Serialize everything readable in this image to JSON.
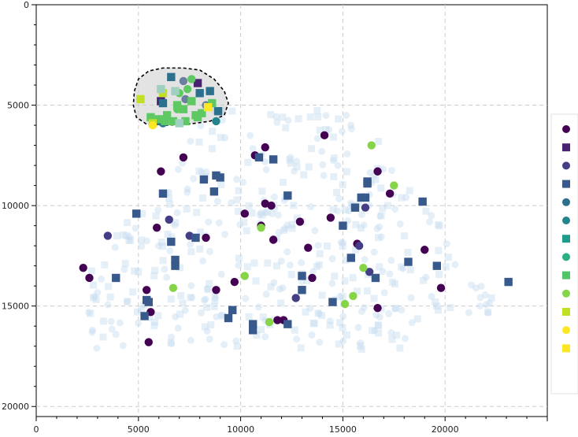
{
  "chart_data": {
    "type": "scatter",
    "title": "",
    "xlabel": "",
    "ylabel": "",
    "xlim": [
      0,
      25000
    ],
    "ylim": [
      20500,
      0
    ],
    "y_inverted": true,
    "grid": true,
    "legend_position": "right",
    "x_ticks": [
      0,
      5000,
      10000,
      15000,
      20000
    ],
    "y_ticks": [
      0,
      5000,
      10000,
      15000,
      20000
    ],
    "x_tick_labels": [
      "0",
      "5000",
      "10000",
      "15000",
      "20000"
    ],
    "y_tick_labels": [
      "0",
      "5000",
      "10000",
      "15000",
      "20000"
    ],
    "background_points_color": "#c6dbef",
    "background_points_opacity": 0.45,
    "background_points_count": 420,
    "lasso_selection": {
      "fill": "#cccccc",
      "stroke": "#000000",
      "outline": [
        [
          4800,
          4300
        ],
        [
          5000,
          3700
        ],
        [
          5500,
          3300
        ],
        [
          6200,
          3150
        ],
        [
          7200,
          3150
        ],
        [
          8000,
          3250
        ],
        [
          8700,
          3700
        ],
        [
          9200,
          4300
        ],
        [
          9400,
          4900
        ],
        [
          9200,
          5500
        ],
        [
          8500,
          5800
        ],
        [
          7400,
          5950
        ],
        [
          6300,
          6000
        ],
        [
          5400,
          5950
        ],
        [
          4900,
          5600
        ],
        [
          4750,
          5000
        ]
      ]
    },
    "legend": [
      {
        "marker": "circle",
        "color": "#440154"
      },
      {
        "marker": "square",
        "color": "#482173"
      },
      {
        "marker": "circle",
        "color": "#433e85"
      },
      {
        "marker": "square",
        "color": "#38598c"
      },
      {
        "marker": "circle",
        "color": "#2d708e"
      },
      {
        "marker": "circle",
        "color": "#25858e"
      },
      {
        "marker": "square",
        "color": "#1e9b8a"
      },
      {
        "marker": "circle",
        "color": "#2ab07f"
      },
      {
        "marker": "square",
        "color": "#52c569"
      },
      {
        "marker": "circle",
        "color": "#86d549"
      },
      {
        "marker": "square",
        "color": "#c2df23"
      },
      {
        "marker": "circle",
        "color": "#fde725"
      },
      {
        "marker": "square",
        "color": "#fde725"
      }
    ],
    "series": [
      {
        "marker": "circle",
        "color": "#440154",
        "points": [
          [
            2300,
            13100
          ],
          [
            2600,
            13600
          ],
          [
            5400,
            14200
          ],
          [
            5600,
            15300
          ],
          [
            5500,
            16800
          ],
          [
            5900,
            11100
          ],
          [
            6100,
            8300
          ],
          [
            7200,
            7600
          ],
          [
            8300,
            11600
          ],
          [
            8800,
            14200
          ],
          [
            9700,
            13800
          ],
          [
            10200,
            10400
          ],
          [
            11000,
            11000
          ],
          [
            11200,
            9900
          ],
          [
            11500,
            10000
          ],
          [
            11600,
            11700
          ],
          [
            11800,
            15700
          ],
          [
            12100,
            15700
          ],
          [
            12900,
            10800
          ],
          [
            13300,
            12100
          ],
          [
            13500,
            13600
          ],
          [
            14100,
            6500
          ],
          [
            14400,
            10600
          ],
          [
            15700,
            11900
          ],
          [
            16700,
            15100
          ],
          [
            16700,
            8300
          ],
          [
            17300,
            9400
          ],
          [
            19800,
            14100
          ],
          [
            19000,
            12200
          ],
          [
            11200,
            7100
          ],
          [
            10700,
            7500
          ]
        ]
      },
      {
        "marker": "circle",
        "color": "#433e85",
        "points": [
          [
            3500,
            11500
          ],
          [
            6500,
            10700
          ],
          [
            7500,
            11500
          ],
          [
            12700,
            14600
          ],
          [
            15800,
            12000
          ],
          [
            16100,
            10100
          ],
          [
            16300,
            13300
          ]
        ]
      },
      {
        "marker": "square",
        "color": "#38598c",
        "points": [
          [
            3900,
            13600
          ],
          [
            4900,
            10400
          ],
          [
            5400,
            14700
          ],
          [
            5500,
            14800
          ],
          [
            5300,
            15500
          ],
          [
            6200,
            9400
          ],
          [
            6600,
            11800
          ],
          [
            6800,
            12700
          ],
          [
            6800,
            13000
          ],
          [
            7800,
            11600
          ],
          [
            8200,
            8700
          ],
          [
            8700,
            9300
          ],
          [
            8800,
            8500
          ],
          [
            9000,
            8600
          ],
          [
            9400,
            15600
          ],
          [
            9600,
            15200
          ],
          [
            10600,
            15900
          ],
          [
            10600,
            16200
          ],
          [
            10900,
            7600
          ],
          [
            11600,
            7700
          ],
          [
            12300,
            9500
          ],
          [
            12300,
            15900
          ],
          [
            13000,
            13500
          ],
          [
            13000,
            14200
          ],
          [
            14500,
            14800
          ],
          [
            15000,
            11000
          ],
          [
            15400,
            12600
          ],
          [
            15600,
            10100
          ],
          [
            15900,
            9600
          ],
          [
            16100,
            9600
          ],
          [
            16200,
            8800
          ],
          [
            16600,
            13600
          ],
          [
            18200,
            12800
          ],
          [
            18900,
            9800
          ],
          [
            19600,
            13000
          ],
          [
            23100,
            13800
          ],
          [
            16200,
            8900
          ]
        ]
      },
      {
        "marker": "circle",
        "color": "#86d549",
        "points": [
          [
            6700,
            14100
          ],
          [
            10200,
            13500
          ],
          [
            11000,
            11100
          ],
          [
            11400,
            15800
          ],
          [
            15100,
            14900
          ],
          [
            15500,
            14500
          ],
          [
            16000,
            13100
          ],
          [
            16400,
            7000
          ],
          [
            17500,
            9000
          ]
        ]
      },
      {
        "marker": "circle",
        "color": "#25858e",
        "points": [
          [
            8800,
            5800
          ]
        ]
      },
      {
        "marker": "circle",
        "color": "#2d708e",
        "points": [
          [
            6000,
            5800
          ],
          [
            6200,
            5900
          ]
        ]
      },
      {
        "marker": "square",
        "color": "#482173",
        "points": [
          [
            6100,
            4800
          ],
          [
            7900,
            3900
          ]
        ]
      },
      {
        "marker": "square",
        "color": "#2d708e",
        "points": [
          [
            6200,
            4900
          ],
          [
            6600,
            3600
          ],
          [
            8000,
            4400
          ],
          [
            8500,
            4300
          ],
          [
            8900,
            5300
          ]
        ]
      },
      {
        "marker": "circle",
        "color": "#6d7fa0",
        "points": [
          [
            7200,
            3800
          ],
          [
            7300,
            4700
          ],
          [
            8300,
            5000
          ]
        ]
      },
      {
        "marker": "square",
        "color": "#5ec962",
        "points": [
          [
            5600,
            5600
          ],
          [
            6000,
            5700
          ],
          [
            6400,
            5500
          ],
          [
            6900,
            5000
          ],
          [
            7200,
            5200
          ],
          [
            7600,
            4800
          ],
          [
            7900,
            5600
          ],
          [
            8100,
            5400
          ],
          [
            8600,
            4900
          ],
          [
            6700,
            5800
          ],
          [
            7300,
            5800
          ],
          [
            7800,
            5500
          ],
          [
            6300,
            5800
          ]
        ]
      },
      {
        "marker": "circle",
        "color": "#5ec962",
        "points": [
          [
            7600,
            3700
          ],
          [
            7000,
            4400
          ],
          [
            7400,
            4200
          ],
          [
            6900,
            5200
          ]
        ]
      },
      {
        "marker": "square",
        "color": "#c2df23",
        "points": [
          [
            5100,
            4700
          ],
          [
            6200,
            4400
          ],
          [
            5700,
            5900
          ]
        ]
      },
      {
        "marker": "circle",
        "color": "#fde725",
        "points": [
          [
            5700,
            6000
          ]
        ]
      },
      {
        "marker": "square",
        "color": "#fde725",
        "points": [
          [
            8400,
            5100
          ]
        ]
      },
      {
        "marker": "square",
        "color": "#a0d0c0",
        "points": [
          [
            6100,
            4200
          ],
          [
            6800,
            4300
          ],
          [
            7000,
            5900
          ]
        ]
      }
    ]
  }
}
